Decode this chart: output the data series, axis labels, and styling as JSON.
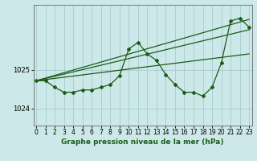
{
  "title": "Graphe pression niveau de la mer (hPa)",
  "bg_color": "#cde8e8",
  "grid_color": "#aad0d0",
  "line_color": "#1a5c1a",
  "x_ticks": [
    0,
    1,
    2,
    3,
    4,
    5,
    6,
    7,
    8,
    9,
    10,
    11,
    12,
    13,
    14,
    15,
    16,
    17,
    18,
    19,
    20,
    21,
    22,
    23
  ],
  "y_ticks": [
    1024,
    1025
  ],
  "ylim": [
    1023.55,
    1026.7
  ],
  "xlim": [
    -0.3,
    23.3
  ],
  "main_series": {
    "x": [
      0,
      1,
      2,
      3,
      4,
      5,
      6,
      7,
      8,
      9,
      10,
      11,
      12,
      13,
      14,
      15,
      16,
      17,
      18,
      19,
      20,
      21,
      22,
      23
    ],
    "y": [
      1024.72,
      1024.72,
      1024.55,
      1024.42,
      1024.42,
      1024.48,
      1024.48,
      1024.55,
      1024.62,
      1024.85,
      1025.55,
      1025.72,
      1025.42,
      1025.25,
      1024.88,
      1024.62,
      1024.42,
      1024.42,
      1024.32,
      1024.55,
      1025.18,
      1026.28,
      1026.35,
      1026.12
    ]
  },
  "trend_line1": {
    "x": [
      0,
      23
    ],
    "y": [
      1024.72,
      1026.05
    ]
  },
  "trend_line2": {
    "x": [
      0,
      23
    ],
    "y": [
      1024.72,
      1026.32
    ]
  },
  "trend_line3": {
    "x": [
      0,
      23
    ],
    "y": [
      1024.72,
      1025.42
    ]
  },
  "tick_fontsize": 5.5,
  "label_fontsize": 6.5,
  "figsize": [
    3.2,
    2.0
  ],
  "dpi": 100
}
